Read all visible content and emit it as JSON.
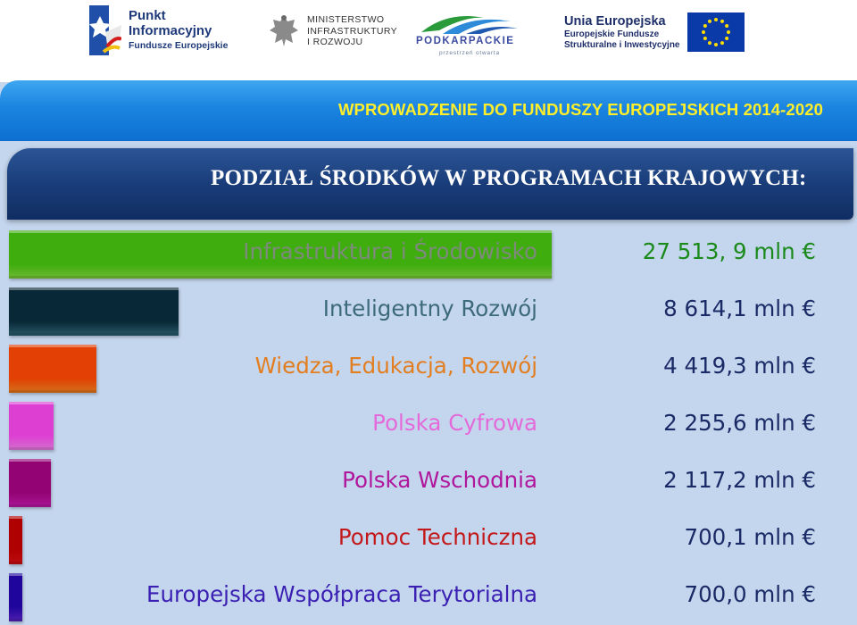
{
  "logos": {
    "punkt": {
      "line1": "Punkt",
      "line2": "Informacyjny",
      "line3": "Fundusze Europejskie"
    },
    "ministry": {
      "line1": "MINISTERSTWO",
      "line2": "INFRASTRUKTURY",
      "line3": "I ROZWOJU"
    },
    "podkarpackie": {
      "name": "PODKARPACKIE",
      "sub": "przestrzeń otwarta"
    },
    "eu": {
      "title": "Unia Europejska",
      "line1": "Europejskie Fundusze",
      "line2": "Strukturalne i Inwestycyjne"
    }
  },
  "header": {
    "title": "WPROWADZENIE DO FUNDUSZY EUROPEJSKICH 2014-2020",
    "subtitle": "PODZIAŁ ŚRODKÓW W PROGRAMACH KRAJOWYCH:"
  },
  "colors": {
    "title_yellow": "#ffef2a",
    "panel": "#c4d6ee",
    "navy": "#1a3d7a"
  },
  "chart_data": {
    "type": "bar",
    "orientation": "horizontal",
    "unit": "mln €",
    "categories": [
      "Infrastruktura i Środowisko",
      "Inteligentny Rozwój",
      "Wiedza, Edukacja, Rozwój",
      "Polska Cyfrowa",
      "Polska Wschodnia",
      "Pomoc Techniczna",
      "Europejska Współpraca Terytorialna"
    ],
    "values": [
      27513.9,
      8614.1,
      4419.3,
      2255.6,
      2117.2,
      700.1,
      700.0
    ],
    "value_labels": [
      "27 513, 9 mln €",
      "8 614,1 mln €",
      "4 419,3 mln €",
      "2 255,6 mln €",
      "2 117,2 mln €",
      "700,1 mln €",
      "700,0 mln €"
    ],
    "bar_colors": [
      "#7ed23a",
      "#2e6576",
      "#f0801e",
      "#ee7fe8",
      "#c21aac",
      "#d40e14",
      "#5a24c8"
    ],
    "label_colors": [
      "#7d8a7c",
      "#3d6a7a",
      "#e27e20",
      "#e46ada",
      "#b0169c",
      "#c3181a",
      "#3a1fb2"
    ],
    "value_colors": [
      "#1a8a1a",
      "#1a2a66",
      "#1a2a66",
      "#1a2a66",
      "#1a2a66",
      "#1a2a66",
      "#1a2a66"
    ]
  }
}
